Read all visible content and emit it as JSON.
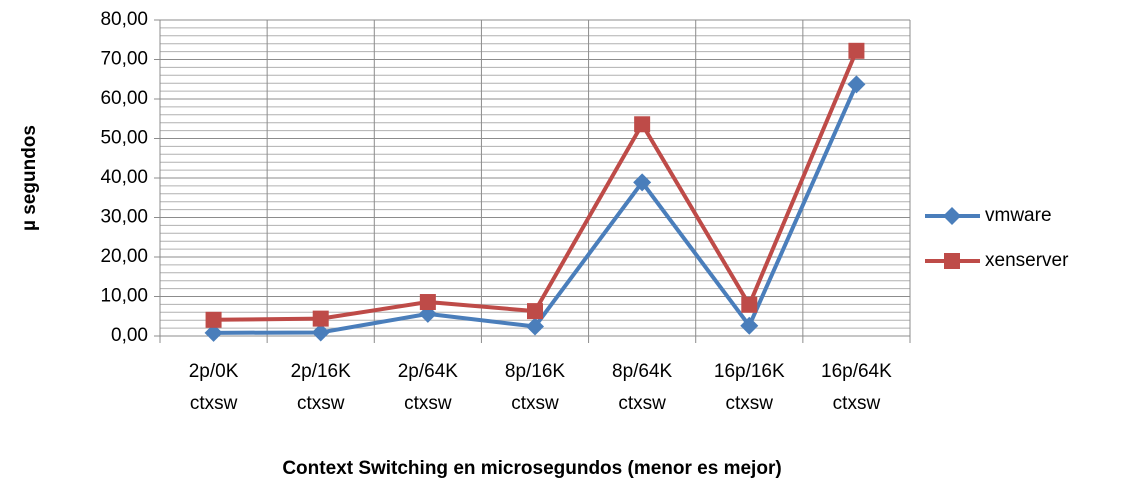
{
  "chart_data": {
    "type": "line",
    "y_label": "µ segundos",
    "x_label": "Context Switching en microsegundos (menor es mejor)",
    "categories": [
      "2p/0K ctxsw",
      "2p/16K ctxsw",
      "2p/64K ctxsw",
      "8p/16K ctxsw",
      "8p/64K ctxsw",
      "16p/16K ctxsw",
      "16p/64K ctxsw"
    ],
    "series": [
      {
        "name": "vmware",
        "color": "#4a7ebb",
        "marker": "diamond",
        "values": [
          0.8,
          0.9,
          5.6,
          2.4,
          38.9,
          2.6,
          63.7
        ]
      },
      {
        "name": "xenserver",
        "color": "#be4b48",
        "marker": "square",
        "values": [
          4.1,
          4.4,
          8.6,
          6.3,
          53.6,
          7.9,
          72.2
        ]
      }
    ],
    "ylim": [
      0,
      80
    ],
    "yticks": [
      {
        "value": 0,
        "label": "0,00"
      },
      {
        "value": 10,
        "label": "10,00"
      },
      {
        "value": 20,
        "label": "20,00"
      },
      {
        "value": 30,
        "label": "30,00"
      },
      {
        "value": 40,
        "label": "40,00"
      },
      {
        "value": 50,
        "label": "50,00"
      },
      {
        "value": 60,
        "label": "60,00"
      },
      {
        "value": 70,
        "label": "70,00"
      },
      {
        "value": 80,
        "label": "80,00"
      }
    ],
    "yminor_ticks": [
      2,
      4,
      6,
      8,
      12,
      14,
      16,
      18,
      22,
      24,
      26,
      28,
      32,
      34,
      36,
      38,
      42,
      44,
      46,
      48,
      52,
      54,
      56,
      58,
      62,
      64,
      66,
      68,
      72,
      74,
      76,
      78
    ],
    "grid": true,
    "legend": "right"
  }
}
